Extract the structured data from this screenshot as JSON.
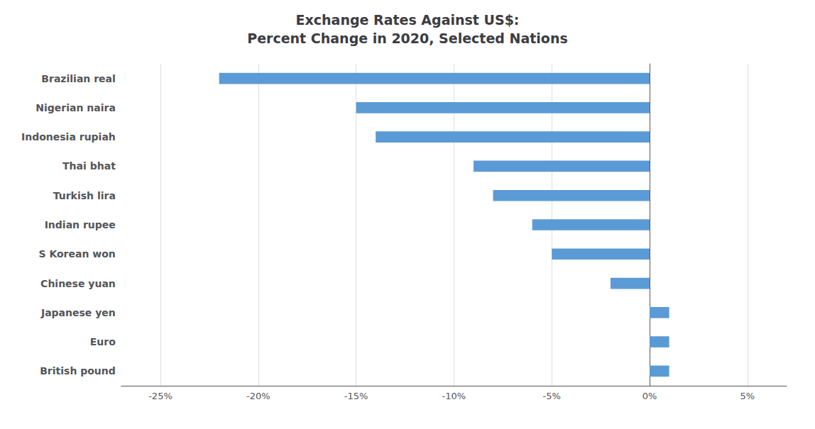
{
  "chart_data": {
    "type": "bar",
    "title": "Exchange Rates Against US$:\nPercent Change in 2020, Selected Nations",
    "orientation": "horizontal",
    "categories": [
      "British pound",
      "Euro",
      "Japanese yen",
      "Chinese yuan",
      "S Korean won",
      "Indian rupee",
      "Turkish lira",
      "Thai bhat",
      "Indonesia rupiah",
      "Nigerian naira",
      "Brazilian real"
    ],
    "values": [
      1,
      1,
      1,
      -2,
      -5,
      -6,
      -8,
      -9,
      -14,
      -15,
      -22
    ],
    "color": "#5b9bd5",
    "xlim": [
      -27,
      7
    ],
    "xticks": [
      {
        "value": -25,
        "label": "-25%"
      },
      {
        "value": -20,
        "label": "-20%"
      },
      {
        "value": -15,
        "label": "-15%"
      },
      {
        "value": -10,
        "label": "-10%"
      },
      {
        "value": -5,
        "label": "-5%"
      },
      {
        "value": 0,
        "label": "0%"
      },
      {
        "value": 5,
        "label": "5%"
      }
    ],
    "grid": true
  }
}
